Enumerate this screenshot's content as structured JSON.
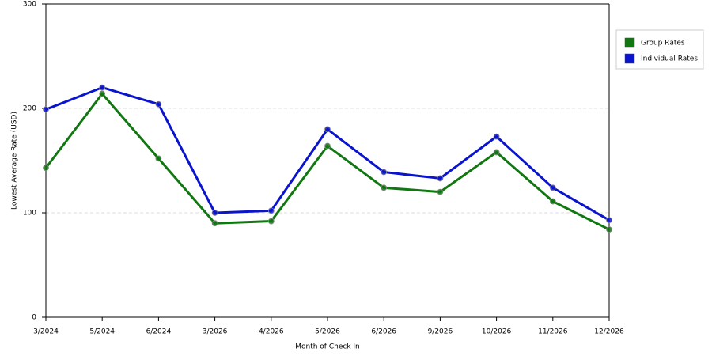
{
  "chart_data": {
    "type": "line",
    "x_label": "Month of Check In",
    "y_label": "Lowest Average Rate (USD)",
    "categories": [
      "3/2024",
      "5/2024",
      "6/2024",
      "3/2026",
      "4/2026",
      "5/2026",
      "6/2026",
      "9/2026",
      "10/2026",
      "11/2026",
      "12/2026"
    ],
    "series": [
      {
        "name": "Group Rates",
        "color": "#117711",
        "values": [
          143,
          214,
          152,
          90,
          92,
          164,
          124,
          120,
          158,
          111,
          84
        ]
      },
      {
        "name": "Individual Rates",
        "color": "#0a14cc",
        "values": [
          199,
          220,
          204,
          100,
          102,
          180,
          139,
          133,
          173,
          124,
          93
        ]
      }
    ],
    "ylim": [
      0,
      300
    ],
    "yticks": [
      0,
      100,
      200,
      300
    ],
    "grid": true,
    "legend": "right"
  }
}
